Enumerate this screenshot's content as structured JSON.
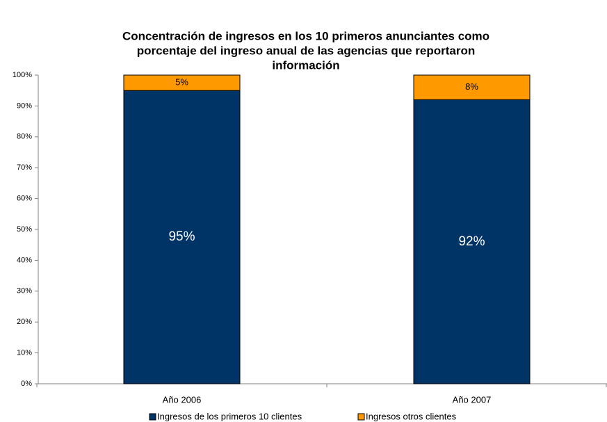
{
  "chart_data": {
    "type": "stacked_bar",
    "title": [
      "Concentración de ingresos en los 10 primeros anunciantes como",
      "porcentaje del ingreso anual de las agencias que reportaron",
      "información"
    ],
    "categories": [
      "Año 2006",
      "Año 2007"
    ],
    "series": [
      {
        "name": "Ingresos de los primeros 10 clientes",
        "color": "#003366",
        "values": [
          95,
          92
        ],
        "value_labels": [
          "95%",
          "92%"
        ]
      },
      {
        "name": "Ingresos otros clientes",
        "color": "#ff9900",
        "values": [
          5,
          8
        ],
        "value_labels": [
          "5%",
          "8%"
        ]
      }
    ],
    "ylim": [
      0,
      100
    ],
    "yticks": [
      {
        "value": 0,
        "label": "0%"
      },
      {
        "value": 10,
        "label": "10%"
      },
      {
        "value": 20,
        "label": "20%"
      },
      {
        "value": 30,
        "label": "30%"
      },
      {
        "value": 40,
        "label": "40%"
      },
      {
        "value": 50,
        "label": "50%"
      },
      {
        "value": 60,
        "label": "60%"
      },
      {
        "value": 70,
        "label": "70%"
      },
      {
        "value": 80,
        "label": "80%"
      },
      {
        "value": 90,
        "label": "90%"
      },
      {
        "value": 100,
        "label": "100%"
      }
    ],
    "legend": "bottom"
  }
}
